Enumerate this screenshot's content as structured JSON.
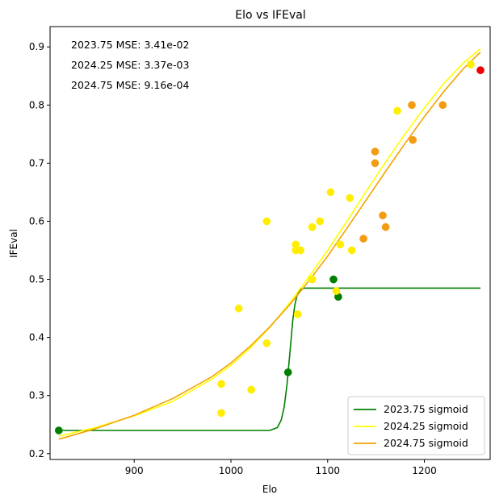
{
  "chart_data": {
    "type": "scatter",
    "title": "Elo vs IFEval",
    "xlabel": "Elo",
    "ylabel": "IFEval",
    "xlim": [
      813,
      1268
    ],
    "ylim": [
      0.19,
      0.935
    ],
    "xticks": [
      900,
      1000,
      1100,
      1200
    ],
    "yticks": [
      0.2,
      0.3,
      0.4,
      0.5,
      0.6,
      0.7,
      0.8,
      0.9
    ],
    "grid": false,
    "legend_position": "lower-right",
    "annotations": [
      "2023.75 MSE: 3.41e-02",
      "2024.25 MSE: 3.37e-03",
      "2024.75 MSE: 9.16e-04"
    ],
    "scatter_points": [
      {
        "x": 822,
        "y": 0.24,
        "color": "#008000"
      },
      {
        "x": 1059,
        "y": 0.34,
        "color": "#008000"
      },
      {
        "x": 1106,
        "y": 0.5,
        "color": "#008000"
      },
      {
        "x": 1111,
        "y": 0.47,
        "color": "#008000"
      },
      {
        "x": 990,
        "y": 0.27,
        "color": "#ffee00"
      },
      {
        "x": 990,
        "y": 0.32,
        "color": "#ffee00"
      },
      {
        "x": 1008,
        "y": 0.45,
        "color": "#ffee00"
      },
      {
        "x": 1021,
        "y": 0.31,
        "color": "#ffee00"
      },
      {
        "x": 1037,
        "y": 0.39,
        "color": "#ffee00"
      },
      {
        "x": 1037,
        "y": 0.6,
        "color": "#ffee00"
      },
      {
        "x": 1067,
        "y": 0.56,
        "color": "#ffee00"
      },
      {
        "x": 1067,
        "y": 0.55,
        "color": "#ffee00"
      },
      {
        "x": 1072,
        "y": 0.55,
        "color": "#ffee00"
      },
      {
        "x": 1069,
        "y": 0.44,
        "color": "#ffee00"
      },
      {
        "x": 1084,
        "y": 0.59,
        "color": "#ffee00"
      },
      {
        "x": 1084,
        "y": 0.5,
        "color": "#ffee00"
      },
      {
        "x": 1092,
        "y": 0.6,
        "color": "#ffee00"
      },
      {
        "x": 1103,
        "y": 0.65,
        "color": "#ffee00"
      },
      {
        "x": 1109,
        "y": 0.48,
        "color": "#ffee00"
      },
      {
        "x": 1113,
        "y": 0.56,
        "color": "#ffee00"
      },
      {
        "x": 1123,
        "y": 0.64,
        "color": "#ffee00"
      },
      {
        "x": 1125,
        "y": 0.55,
        "color": "#ffee00"
      },
      {
        "x": 1172,
        "y": 0.79,
        "color": "#ffee00"
      },
      {
        "x": 1248,
        "y": 0.87,
        "color": "#ffee00"
      },
      {
        "x": 1137,
        "y": 0.57,
        "color": "#f39c12"
      },
      {
        "x": 1149,
        "y": 0.72,
        "color": "#f39c12"
      },
      {
        "x": 1149,
        "y": 0.7,
        "color": "#f39c12"
      },
      {
        "x": 1157,
        "y": 0.61,
        "color": "#f39c12"
      },
      {
        "x": 1160,
        "y": 0.59,
        "color": "#f39c12"
      },
      {
        "x": 1187,
        "y": 0.8,
        "color": "#f39c12"
      },
      {
        "x": 1188,
        "y": 0.74,
        "color": "#f39c12"
      },
      {
        "x": 1219,
        "y": 0.8,
        "color": "#f39c12"
      },
      {
        "x": 1258,
        "y": 0.86,
        "color": "#ee0000"
      }
    ],
    "series": [
      {
        "name": "2023.75 sigmoid",
        "color": "#008000",
        "x": [
          822,
          900,
          1000,
          1040,
          1048,
          1052,
          1055,
          1058,
          1061,
          1064,
          1066,
          1068,
          1070,
          1072,
          1074,
          1076,
          1080,
          1100,
          1150,
          1258
        ],
        "y": [
          0.24,
          0.24,
          0.24,
          0.24,
          0.245,
          0.258,
          0.28,
          0.32,
          0.375,
          0.43,
          0.455,
          0.47,
          0.478,
          0.482,
          0.484,
          0.485,
          0.485,
          0.485,
          0.485,
          0.485
        ]
      },
      {
        "name": "2024.25 sigmoid",
        "color": "#ffff00",
        "x": [
          822,
          860,
          900,
          940,
          980,
          1000,
          1020,
          1040,
          1060,
          1080,
          1100,
          1120,
          1140,
          1160,
          1180,
          1200,
          1220,
          1240,
          1258
        ],
        "y": [
          0.23,
          0.245,
          0.265,
          0.29,
          0.328,
          0.352,
          0.382,
          0.417,
          0.458,
          0.503,
          0.55,
          0.6,
          0.652,
          0.702,
          0.75,
          0.795,
          0.837,
          0.872,
          0.897
        ]
      },
      {
        "name": "2024.75 sigmoid",
        "color": "#f5a300",
        "x": [
          822,
          860,
          900,
          940,
          980,
          1000,
          1020,
          1040,
          1060,
          1080,
          1100,
          1120,
          1140,
          1160,
          1180,
          1200,
          1220,
          1240,
          1258
        ],
        "y": [
          0.225,
          0.243,
          0.266,
          0.295,
          0.332,
          0.356,
          0.385,
          0.418,
          0.455,
          0.496,
          0.54,
          0.588,
          0.637,
          0.686,
          0.734,
          0.78,
          0.823,
          0.862,
          0.891
        ]
      }
    ]
  }
}
